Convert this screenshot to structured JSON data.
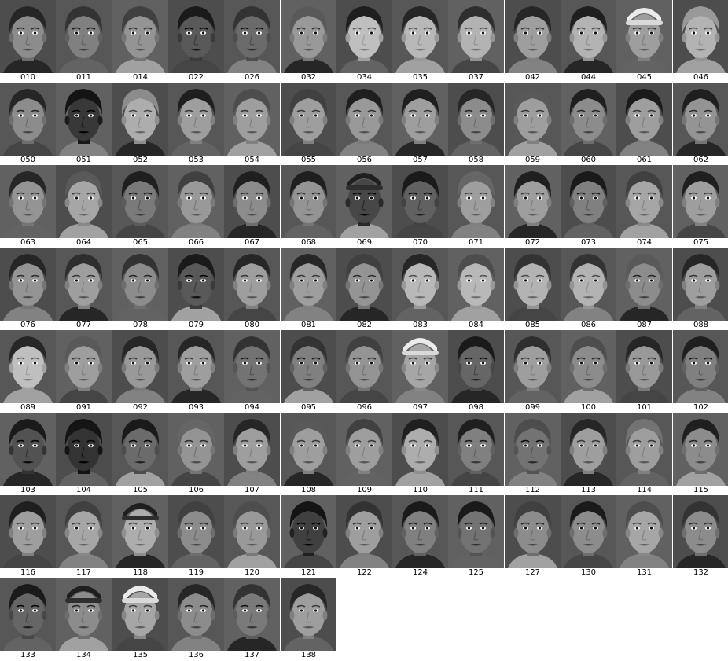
{
  "faces": [
    {
      "id": "010",
      "tone": 0.55,
      "hair": 0.15,
      "hat": false
    },
    {
      "id": "011",
      "tone": 0.5,
      "hair": 0.2,
      "hat": false
    },
    {
      "id": "014",
      "tone": 0.58,
      "hair": 0.25,
      "hat": false
    },
    {
      "id": "022",
      "tone": 0.35,
      "hair": 0.1,
      "hat": false
    },
    {
      "id": "026",
      "tone": 0.42,
      "hair": 0.2,
      "hat": false
    },
    {
      "id": "032",
      "tone": 0.6,
      "hair": 0.35,
      "hat": false
    },
    {
      "id": "034",
      "tone": 0.75,
      "hair": 0.12,
      "hat": false
    },
    {
      "id": "035",
      "tone": 0.72,
      "hair": 0.15,
      "hat": false
    },
    {
      "id": "037",
      "tone": 0.7,
      "hair": 0.18,
      "hat": false
    },
    {
      "id": "042",
      "tone": 0.62,
      "hair": 0.15,
      "hat": false
    },
    {
      "id": "044",
      "tone": 0.7,
      "hair": 0.12,
      "hat": false
    },
    {
      "id": "045",
      "tone": 0.62,
      "hair": 0.2,
      "hat": true
    },
    {
      "id": "046",
      "tone": 0.7,
      "hair": 0.6,
      "hat": false
    },
    {
      "id": "050",
      "tone": 0.55,
      "hair": 0.15,
      "hat": false
    },
    {
      "id": "051",
      "tone": 0.22,
      "hair": 0.08,
      "hat": false
    },
    {
      "id": "052",
      "tone": 0.68,
      "hair": 0.55,
      "hat": false
    },
    {
      "id": "053",
      "tone": 0.62,
      "hair": 0.12,
      "hat": false
    },
    {
      "id": "054",
      "tone": 0.62,
      "hair": 0.3,
      "hat": false
    },
    {
      "id": "055",
      "tone": 0.62,
      "hair": 0.25,
      "hat": false
    },
    {
      "id": "056",
      "tone": 0.6,
      "hair": 0.12,
      "hat": false
    },
    {
      "id": "057",
      "tone": 0.62,
      "hair": 0.12,
      "hat": false
    },
    {
      "id": "058",
      "tone": 0.55,
      "hair": 0.15,
      "hat": false
    },
    {
      "id": "059",
      "tone": 0.62,
      "hair": 0.35,
      "hat": false
    },
    {
      "id": "060",
      "tone": 0.55,
      "hair": 0.12,
      "hat": false
    },
    {
      "id": "061",
      "tone": 0.62,
      "hair": 0.1,
      "hat": false
    },
    {
      "id": "062",
      "tone": 0.58,
      "hair": 0.12,
      "hat": false
    },
    {
      "id": "063",
      "tone": 0.58,
      "hair": 0.15,
      "hat": false
    },
    {
      "id": "064",
      "tone": 0.65,
      "hair": 0.35,
      "hat": false
    },
    {
      "id": "065",
      "tone": 0.48,
      "hair": 0.12,
      "hat": false
    },
    {
      "id": "066",
      "tone": 0.6,
      "hair": 0.25,
      "hat": false
    },
    {
      "id": "067",
      "tone": 0.55,
      "hair": 0.12,
      "hat": false
    },
    {
      "id": "068",
      "tone": 0.58,
      "hair": 0.12,
      "hat": false
    },
    {
      "id": "069",
      "tone": 0.28,
      "hair": 0.08,
      "hat": true
    },
    {
      "id": "070",
      "tone": 0.38,
      "hair": 0.1,
      "hat": false
    },
    {
      "id": "071",
      "tone": 0.62,
      "hair": 0.4,
      "hat": false
    },
    {
      "id": "072",
      "tone": 0.62,
      "hair": 0.12,
      "hat": false
    },
    {
      "id": "073",
      "tone": 0.5,
      "hair": 0.1,
      "hat": false
    },
    {
      "id": "074",
      "tone": 0.65,
      "hair": 0.25,
      "hat": false
    },
    {
      "id": "075",
      "tone": 0.62,
      "hair": 0.12,
      "hat": false
    },
    {
      "id": "076",
      "tone": 0.58,
      "hair": 0.15,
      "hat": false
    },
    {
      "id": "077",
      "tone": 0.62,
      "hair": 0.18,
      "hat": false
    },
    {
      "id": "078",
      "tone": 0.55,
      "hair": 0.2,
      "hat": false
    },
    {
      "id": "079",
      "tone": 0.35,
      "hair": 0.1,
      "hat": false
    },
    {
      "id": "080",
      "tone": 0.62,
      "hair": 0.15,
      "hat": false
    },
    {
      "id": "081",
      "tone": 0.62,
      "hair": 0.15,
      "hat": false
    },
    {
      "id": "082",
      "tone": 0.58,
      "hair": 0.25,
      "hat": false
    },
    {
      "id": "083",
      "tone": 0.72,
      "hair": 0.15,
      "hat": false
    },
    {
      "id": "084",
      "tone": 0.72,
      "hair": 0.3,
      "hat": false
    },
    {
      "id": "085",
      "tone": 0.7,
      "hair": 0.2,
      "hat": false
    },
    {
      "id": "086",
      "tone": 0.7,
      "hair": 0.2,
      "hat": false
    },
    {
      "id": "087",
      "tone": 0.55,
      "hair": 0.35,
      "hat": false
    },
    {
      "id": "088",
      "tone": 0.62,
      "hair": 0.15,
      "hat": false
    },
    {
      "id": "089",
      "tone": 0.75,
      "hair": 0.15,
      "hat": false
    },
    {
      "id": "091",
      "tone": 0.62,
      "hair": 0.35,
      "hat": false
    },
    {
      "id": "092",
      "tone": 0.6,
      "hair": 0.15,
      "hat": false
    },
    {
      "id": "093",
      "tone": 0.62,
      "hair": 0.15,
      "hat": false
    },
    {
      "id": "094",
      "tone": 0.45,
      "hair": 0.2,
      "hat": false
    },
    {
      "id": "095",
      "tone": 0.5,
      "hair": 0.2,
      "hat": false
    },
    {
      "id": "096",
      "tone": 0.58,
      "hair": 0.25,
      "hat": false
    },
    {
      "id": "097",
      "tone": 0.65,
      "hair": 0.1,
      "hat": true
    },
    {
      "id": "098",
      "tone": 0.4,
      "hair": 0.1,
      "hat": false
    },
    {
      "id": "099",
      "tone": 0.62,
      "hair": 0.18,
      "hat": false
    },
    {
      "id": "100",
      "tone": 0.55,
      "hair": 0.3,
      "hat": false
    },
    {
      "id": "101",
      "tone": 0.6,
      "hair": 0.15,
      "hat": false
    },
    {
      "id": "102",
      "tone": 0.5,
      "hair": 0.12,
      "hat": false
    },
    {
      "id": "103",
      "tone": 0.32,
      "hair": 0.1,
      "hat": false
    },
    {
      "id": "104",
      "tone": 0.2,
      "hair": 0.08,
      "hat": false
    },
    {
      "id": "105",
      "tone": 0.42,
      "hair": 0.1,
      "hat": false
    },
    {
      "id": "106",
      "tone": 0.58,
      "hair": 0.4,
      "hat": false
    },
    {
      "id": "107",
      "tone": 0.62,
      "hair": 0.15,
      "hat": false
    },
    {
      "id": "108",
      "tone": 0.62,
      "hair": 0.35,
      "hat": false
    },
    {
      "id": "109",
      "tone": 0.62,
      "hair": 0.25,
      "hat": false
    },
    {
      "id": "110",
      "tone": 0.68,
      "hair": 0.12,
      "hat": false
    },
    {
      "id": "111",
      "tone": 0.5,
      "hair": 0.12,
      "hat": false
    },
    {
      "id": "112",
      "tone": 0.45,
      "hair": 0.3,
      "hat": false
    },
    {
      "id": "113",
      "tone": 0.62,
      "hair": 0.15,
      "hat": false
    },
    {
      "id": "114",
      "tone": 0.62,
      "hair": 0.45,
      "hat": false
    },
    {
      "id": "115",
      "tone": 0.55,
      "hair": 0.12,
      "hat": false
    },
    {
      "id": "116",
      "tone": 0.62,
      "hair": 0.12,
      "hat": false
    },
    {
      "id": "117",
      "tone": 0.65,
      "hair": 0.25,
      "hat": false
    },
    {
      "id": "118",
      "tone": 0.68,
      "hair": 0.25,
      "hat": true
    },
    {
      "id": "119",
      "tone": 0.55,
      "hair": 0.25,
      "hat": false
    },
    {
      "id": "120",
      "tone": 0.6,
      "hair": 0.3,
      "hat": false
    },
    {
      "id": "121",
      "tone": 0.25,
      "hair": 0.08,
      "hat": false
    },
    {
      "id": "122",
      "tone": 0.62,
      "hair": 0.2,
      "hat": false
    },
    {
      "id": "124",
      "tone": 0.5,
      "hair": 0.1,
      "hat": false
    },
    {
      "id": "125",
      "tone": 0.45,
      "hair": 0.1,
      "hat": false
    },
    {
      "id": "127",
      "tone": 0.55,
      "hair": 0.25,
      "hat": false
    },
    {
      "id": "130",
      "tone": 0.55,
      "hair": 0.1,
      "hat": false
    },
    {
      "id": "131",
      "tone": 0.65,
      "hair": 0.3,
      "hat": false
    },
    {
      "id": "132",
      "tone": 0.55,
      "hair": 0.2,
      "hat": false
    },
    {
      "id": "133",
      "tone": 0.4,
      "hair": 0.1,
      "hat": false
    },
    {
      "id": "134",
      "tone": 0.55,
      "hair": 0.15,
      "hat": true
    },
    {
      "id": "135",
      "tone": 0.65,
      "hair": 0.15,
      "hat": true
    },
    {
      "id": "136",
      "tone": 0.55,
      "hair": 0.15,
      "hat": false
    },
    {
      "id": "137",
      "tone": 0.48,
      "hair": 0.2,
      "hat": false
    },
    {
      "id": "138",
      "tone": 0.62,
      "hair": 0.15,
      "hat": false
    }
  ]
}
